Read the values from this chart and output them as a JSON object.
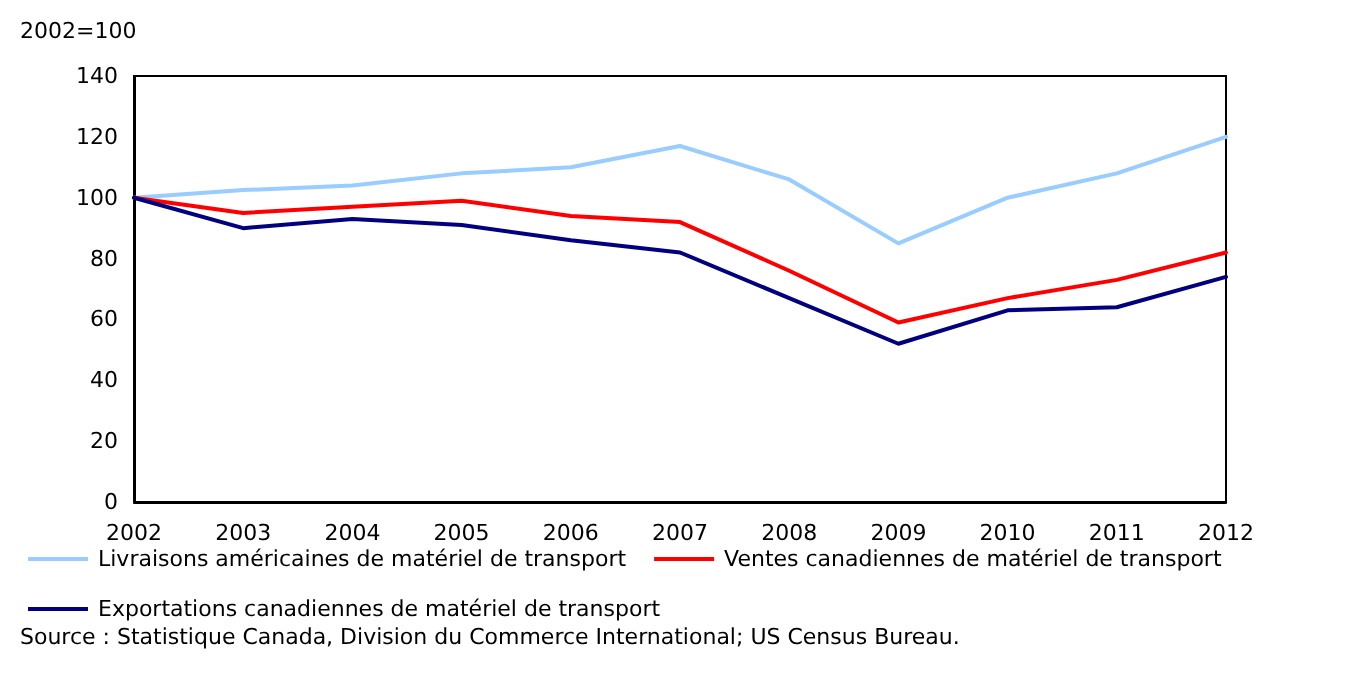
{
  "chart_data": {
    "type": "line",
    "ylabel": "2002=100",
    "categories": [
      "2002",
      "2003",
      "2004",
      "2005",
      "2006",
      "2007",
      "2008",
      "2009",
      "2010",
      "2011",
      "2012"
    ],
    "series": [
      {
        "name": "Livraisons américaines de matériel de transport",
        "color": "#99ccff",
        "values": [
          100,
          102.5,
          104,
          108,
          110,
          117,
          106,
          85,
          100,
          108,
          120
        ]
      },
      {
        "name": "Ventes canadiennes de matériel de transport",
        "color": "#ff0000",
        "values": [
          100,
          95,
          97,
          99,
          94,
          92,
          76,
          59,
          67,
          73,
          82
        ]
      },
      {
        "name": "Exportations canadiennes de matériel de transport",
        "color": "#000080",
        "values": [
          100,
          90,
          93,
          91,
          86,
          82,
          67,
          52,
          63,
          64,
          74
        ]
      }
    ],
    "ylim": [
      0,
      140
    ],
    "yticks": [
      0,
      20,
      40,
      60,
      80,
      100,
      120,
      140
    ],
    "grid": false,
    "legend": "bottom",
    "marker": "none",
    "line_style": "solid",
    "annotations": [
      "Source : Statistique Canada, Division du Commerce International; US Census Bureau."
    ]
  }
}
